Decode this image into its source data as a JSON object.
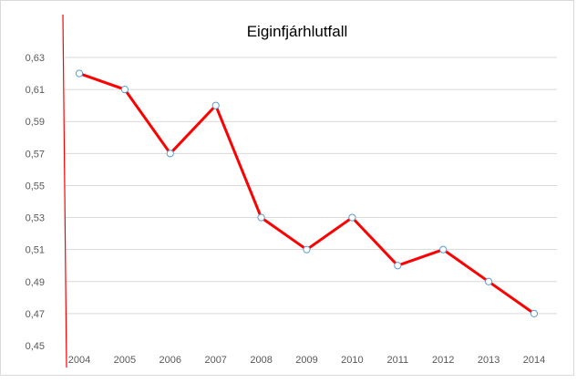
{
  "chart_data": {
    "type": "line",
    "title": "Eiginfjárhlutfall",
    "xlabel": "",
    "ylabel": "",
    "categories": [
      "2004",
      "2005",
      "2006",
      "2007",
      "2008",
      "2009",
      "2010",
      "2011",
      "2012",
      "2013",
      "2014"
    ],
    "series": [
      {
        "values": [
          0.62,
          0.61,
          0.57,
          0.6,
          0.53,
          0.51,
          0.53,
          0.5,
          0.51,
          0.49,
          0.47
        ],
        "color": "#ff0000"
      }
    ],
    "ylim": [
      0.45,
      0.63
    ],
    "yticks": [
      "0,45",
      "0,47",
      "0,49",
      "0,51",
      "0,53",
      "0,55",
      "0,57",
      "0,59",
      "0,61",
      "0,63"
    ],
    "grid": true,
    "legend": "none",
    "colors": {
      "line": "#ff0000",
      "marker_fill": "#ffffff",
      "marker_stroke": "#5b9bd5",
      "grid": "#d9d9d9",
      "tick_text": "#595959",
      "axis_line": "#ff0000"
    }
  }
}
